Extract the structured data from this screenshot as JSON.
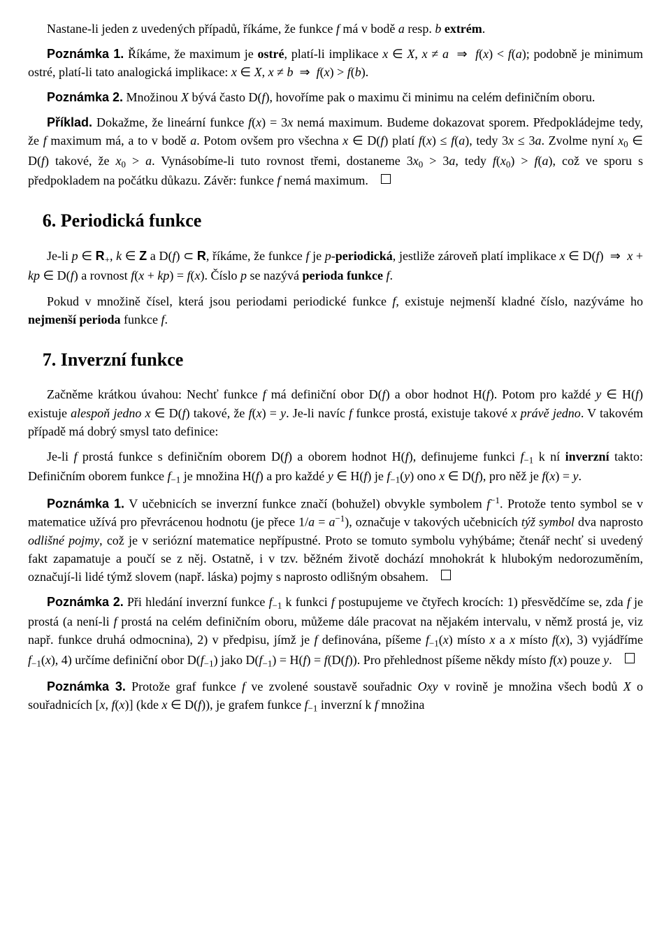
{
  "p_intro": "Nastane-li jeden z uvedených případů, říkáme, že funkce f má v bodě a resp. b extrém.",
  "note1_label": "Poznámka 1.",
  "note1_text": "Říkáme, že maximum je ostré, platí-li implikace x ∈ X, x ≠ a ⇒ f(x) < f(a); podobně je minimum ostré, platí-li tato analogická implikace: x ∈ X, x ≠ b ⇒ f(x) > f(b).",
  "note2_label": "Poznámka 2.",
  "note2_text": "Množinou X bývá často D(f), hovoříme pak o maximu či minimu na celém definičním oboru.",
  "example_label": "Příklad.",
  "example_text": "Dokažme, že lineární funkce f(x) = 3x nemá maximum. Budeme dokazovat sporem. Předpokládejme tedy, že f maximum má, a to v bodě a. Potom ovšem pro všechna x ∈ D(f) platí f(x) ≤ f(a), tedy 3x ≤ 3a. Zvolme nyní x₀ ∈ D(f) takové, že x₀ > a. Vynásobíme-li tuto rovnost třemi, dostaneme 3x₀ > 3a, tedy f(x₀) > f(a), což ve sporu s předpokladem na počátku důkazu. Závěr: funkce f nemá maximum.",
  "h6": "6. Periodická funkce",
  "sec6_p1": "Je-li p ∈ R₊, k ∈ Z a D(f) ⊂ R, říkáme, že funkce f je p-periodická, jestliže zároveň platí implikace x ∈ D(f) ⇒ x + kp ∈ D(f) a rovnost f(x + kp) = f(x). Číslo p se nazývá perioda funkce f.",
  "sec6_p2": "Pokud v množině čísel, která jsou periodami periodické funkce f, existuje nejmenší kladné číslo, nazýváme ho nejmenší perioda funkce f.",
  "h7": "7. Inverzní funkce",
  "sec7_p1": "Začněme krátkou úvahou: Nechť funkce f má definiční obor D(f) a obor hodnot H(f). Potom pro každé y ∈ H(f) existuje alespoň jedno x ∈ D(f) takové, že f(x) = y. Je-li navíc f funkce prostá, existuje takové x právě jedno. V takovém případě má dobrý smysl tato definice:",
  "sec7_p2": "Je-li f prostá funkce s definičním oborem D(f) a oborem hodnot H(f), definujeme funkci f₋₁ k ní inverzní takto: Definičním oborem funkce f₋₁ je množina H(f) a pro každé y ∈ H(f) je f₋₁(y) ono x ∈ D(f), pro něž je f(x) = y.",
  "sec7_note1_label": "Poznámka 1.",
  "sec7_note1_text": "V učebnicích se inverzní funkce značí (bohužel) obvykle symbolem f⁻¹. Protože tento symbol se v matematice užívá pro převrácenou hodnotu (je přece 1/a = a⁻¹), označuje v takových učebnicích týž symbol dva naprosto odlišné pojmy, což je v seriózní matematice nepřípustné. Proto se tomuto symbolu vyhýbáme; čtenář nechť si uvedený fakt zapamatuje a poučí se z něj. Ostatně, i v tzv. běžném životě dochází mnohokrát k hlubokým nedorozuměním, označují-li lidé týmž slovem (např. láska) pojmy s naprosto odlišným obsahem.",
  "sec7_note2_label": "Poznámka 2.",
  "sec7_note2_text": "Při hledání inverzní funkce f₋₁ k funkci f postupujeme ve čtyřech krocích: 1) přesvědčíme se, zda f je prostá (a není-li f prostá na celém definičním oboru, můžeme dále pracovat na nějakém intervalu, v němž prostá je, viz např. funkce druhá odmocnina), 2) v předpisu, jímž je f definována, píšeme f₋₁(x) místo x a x místo f(x), 3) vyjádříme f₋₁(x), 4) určíme definiční obor D(f₋₁) jako D(f₋₁) = H(f) = f(D(f)). Pro přehlednost píšeme někdy místo f(x) pouze y.",
  "sec7_note3_label": "Poznámka 3.",
  "sec7_note3_text": "Protože graf funkce f ve zvolené soustavě souřadnic Oxy v rovině je množina všech bodů X o souřadnicích [x, f(x)] (kde x ∈ D(f)), je grafem funkce f₋₁ inverzní k f množina"
}
